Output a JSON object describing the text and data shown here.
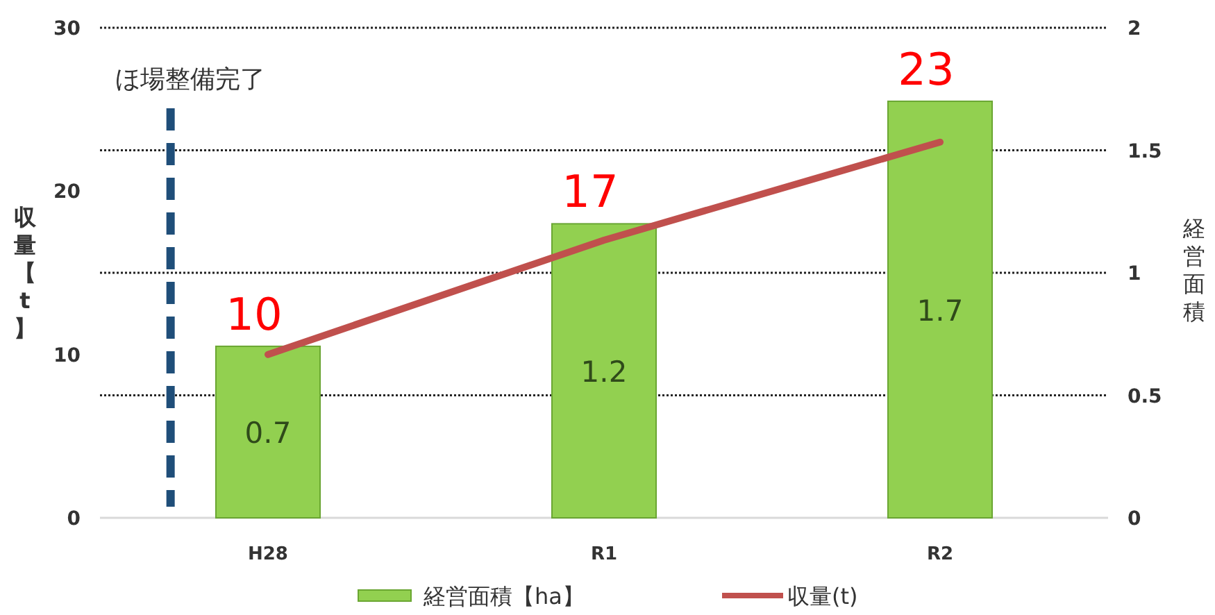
{
  "chart_data": {
    "type": "bar",
    "categories": [
      "H28",
      "R1",
      "R2"
    ],
    "ylabel": "収量【t】",
    "y2label": "経営面積",
    "series": [
      {
        "name": "経営面積【ha】",
        "color": "#92d050",
        "axis": "y2",
        "values": [
          0.7,
          1.2,
          1.7
        ]
      },
      {
        "name": "収量(t)",
        "type": "line",
        "color": "#c0504d",
        "axis": "y",
        "values": [
          10,
          17,
          23
        ]
      }
    ],
    "ylim": [
      0,
      30
    ],
    "yticks": [
      0,
      10,
      20,
      30
    ],
    "y2lim": [
      0,
      2
    ],
    "y2ticks": [
      0,
      0.5,
      1,
      1.5,
      2
    ],
    "grid": true,
    "legend": "bottom",
    "data_labels": true,
    "annotations": [
      "ほ場整備完了"
    ]
  }
}
